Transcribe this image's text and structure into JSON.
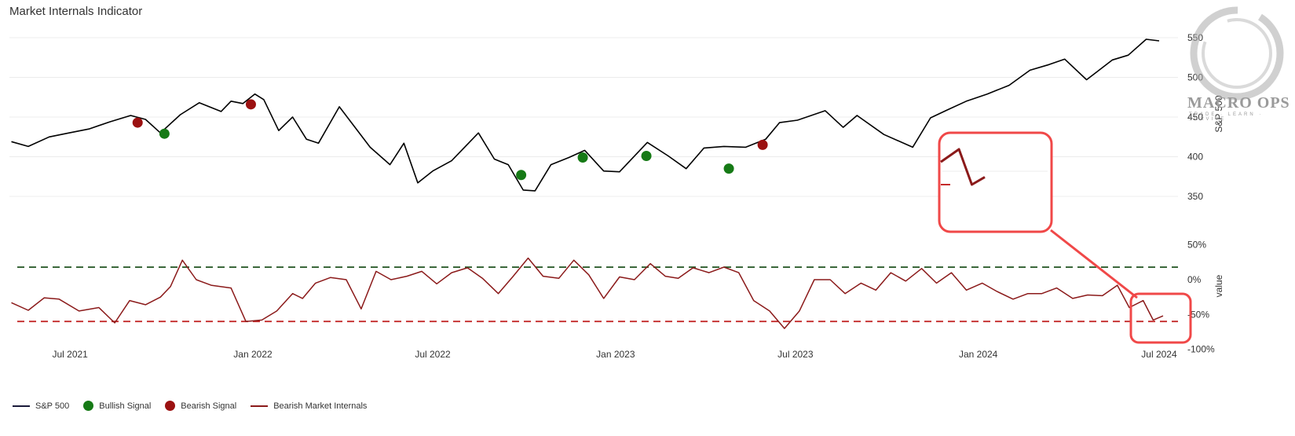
{
  "title": "Market Internals Indicator",
  "watermark": {
    "brand": "MACRO OPS",
    "tagline": "TRADE · LEARN · SURVIVE"
  },
  "legend": [
    {
      "label": "S&P 500",
      "kind": "line",
      "color": "#1a1a3a"
    },
    {
      "label": "Bullish Signal",
      "kind": "dot",
      "color": "#167a16"
    },
    {
      "label": "Bearish Signal",
      "kind": "dot",
      "color": "#9b1111"
    },
    {
      "label": "Bearish Market Internals",
      "kind": "line",
      "color": "#8b1a1a"
    }
  ],
  "chart_data": [
    {
      "type": "line",
      "title": "Market Internals Indicator",
      "ylabel": "S&P 500",
      "ylim": [
        320,
        570
      ],
      "yticks": [
        350,
        400,
        450,
        500,
        550
      ],
      "xlim": [
        "2021-05-01",
        "2024-07-20"
      ],
      "xticks": [
        {
          "date": "2021-07-01",
          "label": "Jul 2021"
        },
        {
          "date": "2022-01-01",
          "label": "Jan 2022"
        },
        {
          "date": "2022-07-01",
          "label": "Jul 2022"
        },
        {
          "date": "2023-01-01",
          "label": "Jan 2023"
        },
        {
          "date": "2023-07-01",
          "label": "Jul 2023"
        },
        {
          "date": "2024-01-01",
          "label": "Jan 2024"
        },
        {
          "date": "2024-07-01",
          "label": "Jul 2024"
        }
      ],
      "grid": true,
      "series": [
        {
          "name": "S&P 500",
          "color": "#000000",
          "points": [
            [
              "2021-05-03",
              419
            ],
            [
              "2021-05-20",
              413
            ],
            [
              "2021-06-10",
              425
            ],
            [
              "2021-06-30",
              430
            ],
            [
              "2021-07-20",
              435
            ],
            [
              "2021-08-10",
              444
            ],
            [
              "2021-08-31",
              452
            ],
            [
              "2021-09-15",
              447
            ],
            [
              "2021-09-30",
              430
            ],
            [
              "2021-10-20",
              453
            ],
            [
              "2021-11-08",
              468
            ],
            [
              "2021-11-30",
              457
            ],
            [
              "2021-12-10",
              470
            ],
            [
              "2021-12-22",
              467
            ],
            [
              "2022-01-03",
              479
            ],
            [
              "2022-01-12",
              472
            ],
            [
              "2022-01-27",
              433
            ],
            [
              "2022-02-10",
              450
            ],
            [
              "2022-02-24",
              422
            ],
            [
              "2022-03-08",
              417
            ],
            [
              "2022-03-29",
              463
            ],
            [
              "2022-04-12",
              440
            ],
            [
              "2022-04-29",
              412
            ],
            [
              "2022-05-19",
              390
            ],
            [
              "2022-06-02",
              417
            ],
            [
              "2022-06-16",
              367
            ],
            [
              "2022-07-01",
              382
            ],
            [
              "2022-07-20",
              395
            ],
            [
              "2022-08-16",
              430
            ],
            [
              "2022-09-01",
              397
            ],
            [
              "2022-09-15",
              390
            ],
            [
              "2022-09-30",
              358
            ],
            [
              "2022-10-12",
              357
            ],
            [
              "2022-10-28",
              390
            ],
            [
              "2022-11-15",
              399
            ],
            [
              "2022-12-01",
              408
            ],
            [
              "2022-12-20",
              382
            ],
            [
              "2023-01-05",
              381
            ],
            [
              "2023-02-02",
              418
            ],
            [
              "2023-02-23",
              401
            ],
            [
              "2023-03-13",
              385
            ],
            [
              "2023-03-31",
              411
            ],
            [
              "2023-04-20",
              413
            ],
            [
              "2023-05-12",
              412
            ],
            [
              "2023-06-01",
              422
            ],
            [
              "2023-06-15",
              443
            ],
            [
              "2023-07-03",
              446
            ],
            [
              "2023-07-31",
              458
            ],
            [
              "2023-08-18",
              437
            ],
            [
              "2023-09-01",
              452
            ],
            [
              "2023-09-28",
              428
            ],
            [
              "2023-10-27",
              412
            ],
            [
              "2023-11-14",
              449
            ],
            [
              "2023-12-01",
              459
            ],
            [
              "2023-12-20",
              470
            ],
            [
              "2024-01-10",
              479
            ],
            [
              "2024-02-01",
              490
            ],
            [
              "2024-02-22",
              509
            ],
            [
              "2024-03-12",
              516
            ],
            [
              "2024-03-28",
              523
            ],
            [
              "2024-04-19",
              497
            ],
            [
              "2024-05-15",
              522
            ],
            [
              "2024-05-31",
              528
            ],
            [
              "2024-06-18",
              548
            ],
            [
              "2024-07-01",
              546
            ]
          ]
        },
        {
          "name": "Bullish Signal",
          "type": "scatter",
          "color": "#167a16",
          "points": [
            [
              "2021-10-04",
              429
            ],
            [
              "2022-09-28",
              377
            ],
            [
              "2022-11-29",
              399
            ],
            [
              "2023-02-01",
              401
            ],
            [
              "2023-04-25",
              385
            ]
          ]
        },
        {
          "name": "Bearish Signal",
          "type": "scatter",
          "color": "#9b1111",
          "points": [
            [
              "2021-09-07",
              443
            ],
            [
              "2021-12-30",
              466
            ],
            [
              "2023-05-29",
              415
            ]
          ]
        }
      ]
    },
    {
      "type": "line",
      "ylabel": "value",
      "ylim": [
        -100,
        70
      ],
      "yticks": [
        {
          "value": 50,
          "label": "50%"
        },
        {
          "value": 0,
          "label": "0%"
        },
        {
          "value": -50,
          "label": "-50%"
        },
        {
          "value": -100,
          "label": "-100%"
        }
      ],
      "threshold_lines": [
        {
          "value": 18,
          "color": "#2e5e2e",
          "style": "dashed"
        },
        {
          "value": -60,
          "color": "#c42a2a",
          "style": "dashed"
        }
      ],
      "series": [
        {
          "name": "Bearish Market Internals",
          "color": "#8b1a1a",
          "points": [
            [
              "2021-05-03",
              -33
            ],
            [
              "2021-05-20",
              -44
            ],
            [
              "2021-06-05",
              -26
            ],
            [
              "2021-06-20",
              -28
            ],
            [
              "2021-07-10",
              -45
            ],
            [
              "2021-07-30",
              -40
            ],
            [
              "2021-08-15",
              -62
            ],
            [
              "2021-08-30",
              -30
            ],
            [
              "2021-09-15",
              -36
            ],
            [
              "2021-09-30",
              -25
            ],
            [
              "2021-10-10",
              -10
            ],
            [
              "2021-10-22",
              28
            ],
            [
              "2021-11-05",
              0
            ],
            [
              "2021-11-20",
              -8
            ],
            [
              "2021-12-10",
              -12
            ],
            [
              "2021-12-25",
              -60
            ],
            [
              "2022-01-10",
              -58
            ],
            [
              "2022-01-25",
              -45
            ],
            [
              "2022-02-10",
              -20
            ],
            [
              "2022-02-20",
              -27
            ],
            [
              "2022-03-05",
              -5
            ],
            [
              "2022-03-20",
              3
            ],
            [
              "2022-04-05",
              0
            ],
            [
              "2022-04-20",
              -42
            ],
            [
              "2022-05-05",
              12
            ],
            [
              "2022-05-20",
              0
            ],
            [
              "2022-06-05",
              5
            ],
            [
              "2022-06-20",
              12
            ],
            [
              "2022-07-05",
              -6
            ],
            [
              "2022-07-20",
              10
            ],
            [
              "2022-08-05",
              17
            ],
            [
              "2022-08-20",
              2
            ],
            [
              "2022-09-05",
              -20
            ],
            [
              "2022-09-20",
              5
            ],
            [
              "2022-10-05",
              31
            ],
            [
              "2022-10-20",
              5
            ],
            [
              "2022-11-05",
              2
            ],
            [
              "2022-11-20",
              28
            ],
            [
              "2022-12-05",
              7
            ],
            [
              "2022-12-20",
              -27
            ],
            [
              "2023-01-05",
              4
            ],
            [
              "2023-01-20",
              0
            ],
            [
              "2023-02-05",
              23
            ],
            [
              "2023-02-20",
              5
            ],
            [
              "2023-03-05",
              2
            ],
            [
              "2023-03-20",
              17
            ],
            [
              "2023-04-05",
              10
            ],
            [
              "2023-04-20",
              18
            ],
            [
              "2023-05-05",
              10
            ],
            [
              "2023-05-20",
              -30
            ],
            [
              "2023-06-05",
              -45
            ],
            [
              "2023-06-20",
              -70
            ],
            [
              "2023-07-05",
              -45
            ],
            [
              "2023-07-20",
              0
            ],
            [
              "2023-08-05",
              0
            ],
            [
              "2023-08-20",
              -20
            ],
            [
              "2023-09-05",
              -5
            ],
            [
              "2023-09-20",
              -15
            ],
            [
              "2023-10-05",
              10
            ],
            [
              "2023-10-20",
              -2
            ],
            [
              "2023-11-05",
              16
            ],
            [
              "2023-11-20",
              -5
            ],
            [
              "2023-12-05",
              10
            ],
            [
              "2023-12-20",
              -15
            ],
            [
              "2024-01-05",
              -5
            ],
            [
              "2024-01-20",
              -17
            ],
            [
              "2024-02-05",
              -28
            ],
            [
              "2024-02-20",
              -20
            ],
            [
              "2024-03-05",
              -20
            ],
            [
              "2024-03-20",
              -12
            ],
            [
              "2024-04-05",
              -27
            ],
            [
              "2024-04-20",
              -22
            ],
            [
              "2024-05-05",
              -23
            ],
            [
              "2024-05-20",
              -8
            ],
            [
              "2024-06-01",
              -40
            ],
            [
              "2024-06-15",
              -30
            ],
            [
              "2024-06-25",
              -58
            ],
            [
              "2024-07-05",
              -52
            ]
          ]
        }
      ]
    }
  ],
  "annotation": {
    "color": "#f04848",
    "zoom_series": [
      [
        "2024-06-01",
        -40
      ],
      [
        "2024-06-15",
        -30
      ],
      [
        "2024-06-25",
        -58
      ],
      [
        "2024-07-05",
        -52
      ]
    ]
  }
}
